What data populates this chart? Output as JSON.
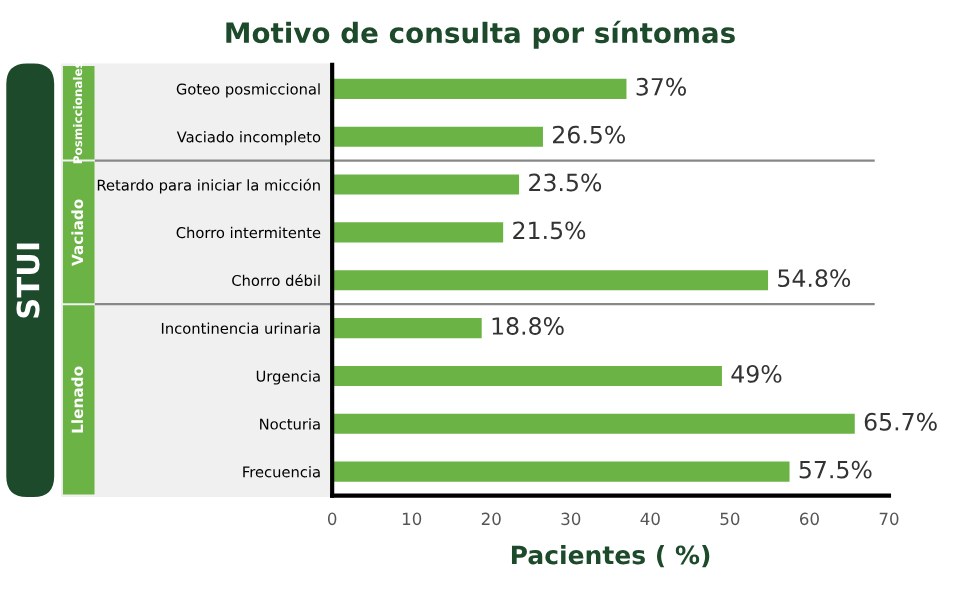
{
  "chart_data": {
    "type": "bar",
    "orientation": "horizontal",
    "title": "Motivo de consulta por síntomas",
    "xlabel": "Pacientes ( %)",
    "categories": [
      "Goteo posmiccional",
      "Vaciado incompleto",
      "Retardo para iniciar la micción",
      "Chorro intermitente",
      "Chorro débil",
      "Incontinencia urinaria",
      "Urgencia",
      "Nocturia",
      "Frecuencia"
    ],
    "values": [
      37,
      26.5,
      23.5,
      21.5,
      54.8,
      18.8,
      49,
      65.7,
      57.5
    ],
    "value_labels": [
      "37%",
      "26.5%",
      "23.5%",
      "21.5%",
      "54.8%",
      "18.8%",
      "49%",
      "65.7%",
      "57.5%"
    ],
    "color": "#6ab344",
    "xlim": [
      0,
      70
    ],
    "xticks": [
      0,
      10,
      20,
      30,
      40,
      50,
      60,
      70
    ],
    "grid": false,
    "legend": false,
    "annotations": [
      "STUI",
      "Posmiccionales",
      "Vaciado",
      "Llenado"
    ]
  }
}
